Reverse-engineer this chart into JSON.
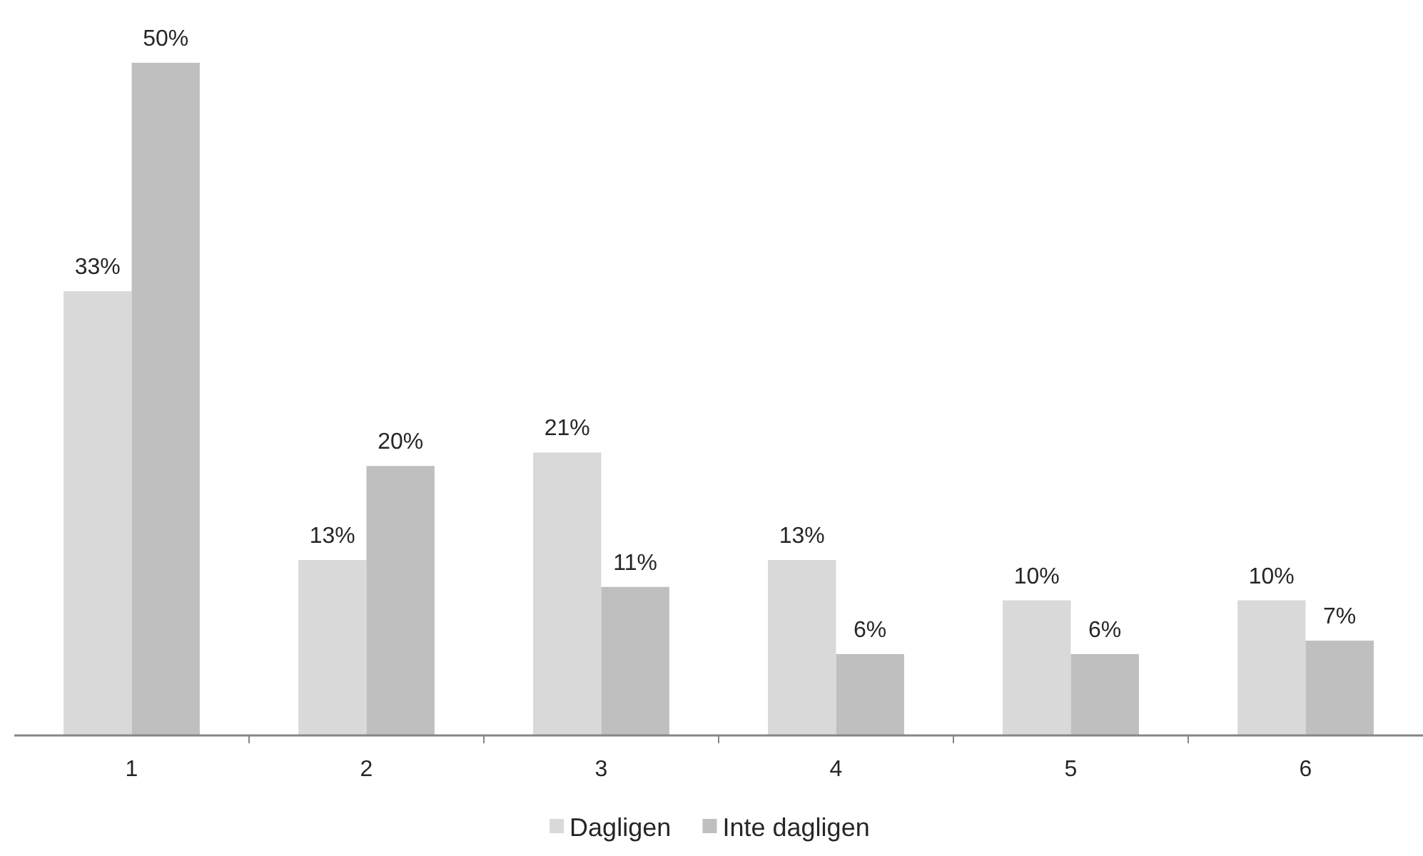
{
  "chart_data": {
    "type": "bar",
    "categories": [
      "1",
      "2",
      "3",
      "4",
      "5",
      "6"
    ],
    "series": [
      {
        "name": "Dagligen",
        "color": "#d9d9d9",
        "values": [
          33,
          13,
          21,
          13,
          10,
          10
        ],
        "value_labels": [
          "33%",
          "13%",
          "21%",
          "13%",
          "10%",
          "10%"
        ]
      },
      {
        "name": "Inte dagligen",
        "color": "#bfbfbf",
        "values": [
          50,
          20,
          11,
          6,
          6,
          7
        ],
        "value_labels": [
          "50%",
          "20%",
          "11%",
          "6%",
          "6%",
          "7%"
        ]
      }
    ],
    "legend": "bottom"
  }
}
